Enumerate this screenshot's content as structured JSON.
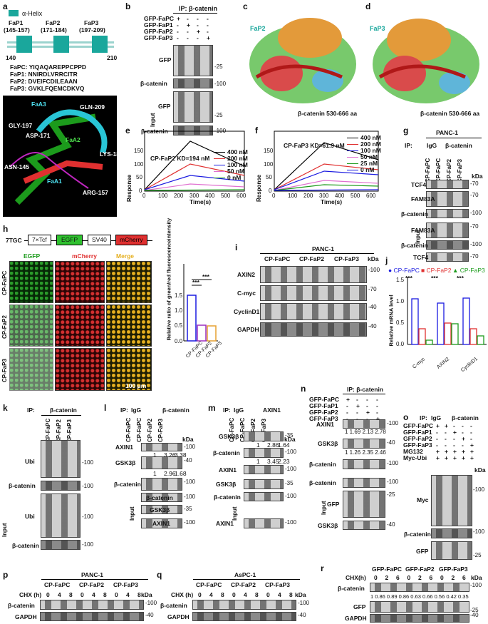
{
  "a": {
    "label": "a",
    "legend": "α-Helix",
    "helix_labels": [
      "FaP1 (145-157)",
      "FaP2 (171-184)",
      "FaP3 (197-209)"
    ],
    "helix_names": [
      "FaP1",
      "FaP2",
      "FaP3"
    ],
    "helix_ranges": [
      "(145-157)",
      "(171-184)",
      "(197-209)"
    ],
    "axis_start": "140",
    "axis_end": "210",
    "sequences": [
      "FaPC: YIQAQAREPPCPPD",
      "FaP1: NNIRDLVRRCITR",
      "FaP2: DVEIFCDILEAAN",
      "FaP3: GVKLFQEMCDKVQ"
    ],
    "structure_labels": [
      "FaA3",
      "GLN-209",
      "GLY-197",
      "ASP-171",
      "FaA2",
      "LYS-184",
      "ASN-145",
      "ARG-157",
      "FaA1"
    ]
  },
  "b": {
    "label": "b",
    "ip": "IP: β-catenin",
    "rows": [
      "GFP-FaPC",
      "GFP-FaP1",
      "GFP-FaP2",
      "GFP-FaP3"
    ],
    "signs": [
      [
        "+",
        "-",
        "-",
        "-"
      ],
      [
        "-",
        "+",
        "-",
        "-"
      ],
      [
        "-",
        "-",
        "+",
        "-"
      ],
      [
        "-",
        "-",
        "-",
        "+"
      ]
    ],
    "blots": [
      "GFP",
      "β-catenin",
      "GFP",
      "β-catenin"
    ],
    "markers": [
      "-25",
      "-100",
      "-25",
      "-100"
    ],
    "input": "Input"
  },
  "c": {
    "label": "c",
    "peptide": "FaP2",
    "caption": "β-catenin 530-666 aa"
  },
  "d": {
    "label": "d",
    "peptide": "FaP3",
    "caption": "β-catenin 530-666 aa"
  },
  "e": {
    "label": "e",
    "title": "CP-FaP2  KD=194 nM",
    "ylabel": "Response",
    "xlabel": "Time(s)",
    "yticks": [
      "0",
      "50",
      "100",
      "150"
    ],
    "xticks": [
      "0",
      "100",
      "200",
      "300",
      "400",
      "500",
      "600"
    ],
    "legend": [
      "400 nM",
      "200 nM",
      "100 nM",
      "50 nM",
      "0 nM"
    ]
  },
  "f": {
    "label": "f",
    "title": "CP-FaP3  KD=61.9 nM",
    "ylabel": "Response",
    "xlabel": "Time(s)",
    "yticks": [
      "0",
      "50",
      "100",
      "150"
    ],
    "xticks": [
      "0",
      "100",
      "200",
      "300",
      "400",
      "500",
      "600"
    ],
    "legend": [
      "400 nM",
      "200 nM",
      "100 nM",
      "50 nM",
      "25 nM",
      "0 nM"
    ]
  },
  "g": {
    "label": "g",
    "cell": "PANC-1",
    "ip": "IP:",
    "igg": "IgG",
    "bcat": "β-catenin",
    "lanes": [
      "CP-FaPC",
      "CP-FaPC",
      "CP-FaP2",
      "CP-FaP3"
    ],
    "kda": "kDa",
    "blots": [
      "TCF4",
      "FAM83A",
      "β-catenin",
      "FAM83A",
      "β-catenin",
      "TCF4"
    ],
    "markers": [
      "-70",
      "-70",
      "-100",
      "-70",
      "-100",
      "-70"
    ],
    "input": "Input"
  },
  "h": {
    "label": "h",
    "construct": [
      "7TGC",
      "7×Tcf",
      "EGFP",
      "SV40",
      "mCherry"
    ],
    "cols": [
      "EGFP",
      "mCherry",
      "Merge"
    ],
    "rows": [
      "CP-FaPC",
      "CP-FaP2",
      "CP-FaP3"
    ],
    "scale": "100 μm",
    "ylabel": "Relative ratio of green/red fluorescenceintensity",
    "yticks": [
      "0.0",
      "0.5",
      "1.0",
      "1.5"
    ],
    "sig": [
      "***",
      "***"
    ]
  },
  "i": {
    "label": "i",
    "cell": "PANC-1",
    "groups": [
      "CP-FaPC",
      "CP-FaP2",
      "CP-FaP3"
    ],
    "kda": "kDa",
    "blots": [
      "AXIN2",
      "C-myc",
      "CyclinD1",
      "GAPDH"
    ],
    "markers": [
      "-100",
      "-70",
      "-40",
      "-40"
    ]
  },
  "j": {
    "label": "j",
    "legend": [
      "CP-FaPC",
      "CP-FaP2",
      "CP-FaP3"
    ],
    "ylabel": "Relative mRNA level",
    "yticks": [
      "0.0",
      "0.5",
      "1.0",
      "1.5"
    ],
    "categories": [
      "C-myc",
      "AXIN2",
      "CyclinD1"
    ],
    "sig": "***"
  },
  "k": {
    "label": "k",
    "ip": "IP:",
    "bcat": "β-catenin",
    "lanes": [
      "CP-FaPC",
      "CP-FaP2",
      "CP-FaP3"
    ],
    "blots": [
      "Ubi",
      "β-catenin",
      "Ubi",
      "β-catenin"
    ],
    "markers": [
      "-100",
      "-100",
      "-100",
      "-100"
    ],
    "input": "Input"
  },
  "l": {
    "label": "l",
    "ip": "IP:",
    "igg": "IgG",
    "bcat": "β-catenin",
    "lanes": [
      "CP-FaPC",
      "CP-FaPC",
      "CP-FaP2",
      "CP-FaP3"
    ],
    "kda": "kDa",
    "blots": [
      "AXIN1",
      "GSK3β",
      "β-catenin",
      "β-catenin",
      "GSK3β",
      "AXIN1"
    ],
    "markers": [
      "-100",
      "-40",
      "-100",
      "-100",
      "-35",
      "-100"
    ],
    "quant1": [
      "1",
      "3.26",
      "3.38"
    ],
    "quant2": [
      "1",
      "2.96",
      "1.68"
    ],
    "input": "Input"
  },
  "m": {
    "label": "m",
    "ip": "IP:",
    "igg": "IgG",
    "axin": "AXIN1",
    "lanes": [
      "CP-FaPC",
      "CP-FaPC",
      "CP-FaP2",
      "CP-FaP3"
    ],
    "kda": "kDa",
    "blots": [
      "GSK3β",
      "β-catenin",
      "AXIN1",
      "GSK3β",
      "β-catenin",
      "AXIN1"
    ],
    "markers": [
      "-35",
      "-100",
      "-100",
      "-35",
      "-100",
      "-100"
    ],
    "quant1": [
      "1",
      "2.86",
      "1.64"
    ],
    "quant2": [
      "1",
      "3.45",
      "2.23"
    ],
    "input": "Input"
  },
  "n": {
    "label": "n",
    "ip": "IP: β-catenin",
    "rows": [
      "GFP-FaPC",
      "GFP-FaP1",
      "GFP-FaP2",
      "GFP-FaP3"
    ],
    "signs": [
      [
        "+",
        "-",
        "-",
        "-"
      ],
      [
        "-",
        "+",
        "-",
        "-"
      ],
      [
        "-",
        "-",
        "+",
        "-"
      ],
      [
        "-",
        "-",
        "-",
        "+"
      ]
    ],
    "blots": [
      "AXIN1",
      "GSK3β",
      "β-catenin",
      "β-catenin",
      "GFP",
      "GSK3β"
    ],
    "markers": [
      "-100",
      "-40",
      "-100",
      "-100",
      "-25",
      "-40"
    ],
    "quant1": "1  1.69  2.13 2.78",
    "quant2": "1  1.26  2.35 2.46",
    "input": "Input"
  },
  "o": {
    "label": "o",
    "ip": "IP:",
    "igg": "IgG",
    "bcat": "β-catenin",
    "rows": [
      "GFP-FaPC",
      "GFP-FaP1",
      "GFP-FaP2",
      "GFP-FaP3",
      "MG132",
      "Myc-Ubi"
    ],
    "signs": [
      [
        "+",
        "+",
        "-",
        "-",
        "-"
      ],
      [
        "-",
        "-",
        "+",
        "-",
        "-"
      ],
      [
        "-",
        "-",
        "-",
        "+",
        "-"
      ],
      [
        "-",
        "-",
        "-",
        "-",
        "+"
      ],
      [
        "+",
        "+",
        "+",
        "+",
        "+"
      ],
      [
        "+",
        "+",
        "+",
        "+",
        "+"
      ]
    ],
    "kda": "kDa",
    "blots": [
      "Myc",
      "β-catenin",
      "GFP"
    ],
    "markers": [
      "-100",
      "-100",
      "-25"
    ]
  },
  "p": {
    "label": "p",
    "cell": "PANC-1",
    "groups": [
      "CP-FaPC",
      "CP-FaP2",
      "CP-FaP3"
    ],
    "chx": "CHX (h)",
    "times": [
      "0",
      "4",
      "8",
      "0",
      "4",
      "8",
      "0",
      "4",
      "8"
    ],
    "kda": "kDa",
    "blots": [
      "β-catenin",
      "GAPDH"
    ],
    "markers": [
      "-100",
      "-40"
    ]
  },
  "q": {
    "label": "q",
    "cell": "AsPC-1",
    "groups": [
      "CP-FaPC",
      "CP-FaP2",
      "CP-FaP3"
    ],
    "chx": "CHX (h)",
    "times": [
      "0",
      "4",
      "8",
      "0",
      "4",
      "8",
      "0",
      "4",
      "8"
    ],
    "kda": "kDa",
    "blots": [
      "β-catenin",
      "GAPDH"
    ],
    "markers": [
      "-100",
      "-40"
    ]
  },
  "r": {
    "label": "r",
    "groups": [
      "GFP-FaPC",
      "GFP-FaP2",
      "GFP-FaP3"
    ],
    "chx": "CHX(h)",
    "times": [
      "0",
      "2",
      "6",
      "0",
      "2",
      "6",
      "0",
      "2",
      "6"
    ],
    "kda": "kDa",
    "blots": [
      "β-catenin",
      "GFP",
      "GAPDH"
    ],
    "markers": [
      "-100",
      "-25",
      "-40"
    ],
    "quant": "1  0.86 0.89 0.86 0.63 0.66 0.56 0.42 0.35"
  },
  "colors": {
    "teal": "#1aa79c",
    "black": "#000000",
    "red": "#e03030",
    "blue": "#1a1ae0",
    "green": "#1c9b1c",
    "pink": "#e070d0"
  }
}
